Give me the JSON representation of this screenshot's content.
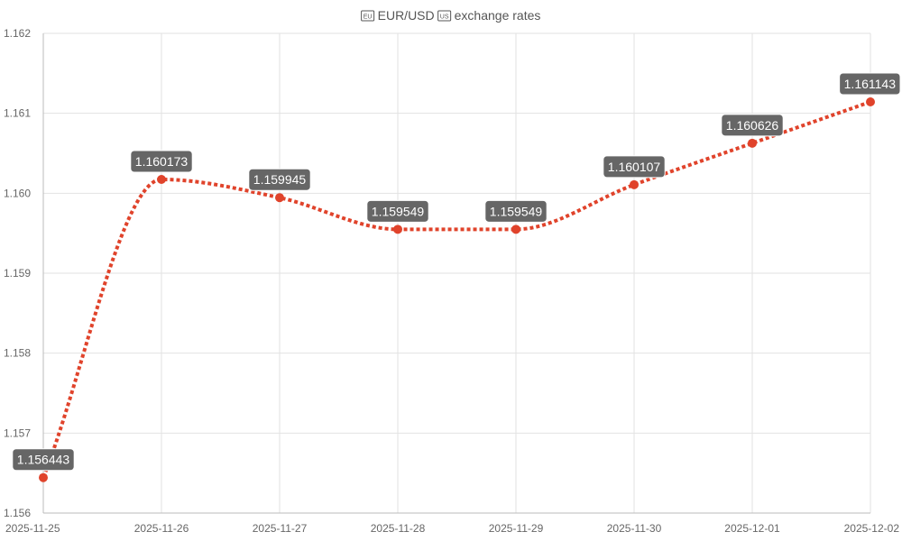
{
  "chart_data": {
    "type": "line",
    "title": "🇪🇺 EUR/USD 🇺🇸 exchange rates",
    "title_parts": {
      "base_flag": "EU",
      "pair": "EUR/USD",
      "quote_flag": "US",
      "suffix": "exchange rates"
    },
    "categories": [
      "2025-11-25",
      "2025-11-26",
      "2025-11-27",
      "2025-11-28",
      "2025-11-29",
      "2025-11-30",
      "2025-12-01",
      "2025-12-02"
    ],
    "values": [
      1.156443,
      1.160173,
      1.159945,
      1.159549,
      1.159549,
      1.160107,
      1.160626,
      1.161143
    ],
    "data_labels": [
      "1.156443",
      "1.160173",
      "1.159945",
      "1.159549",
      "1.159549",
      "1.160107",
      "1.160626",
      "1.161143"
    ],
    "y_ticks": [
      "1.162",
      "1.161",
      "1.160",
      "1.159",
      "1.158",
      "1.157",
      "1.156"
    ],
    "ylim": [
      1.156,
      1.162
    ],
    "line_style": "dotted",
    "smooth": true,
    "grid": true,
    "legend": "none",
    "colors": {
      "series": "#e0432b",
      "label_bg": "#666666",
      "label_text": "#ffffff",
      "grid": "#e2e2e2"
    }
  }
}
